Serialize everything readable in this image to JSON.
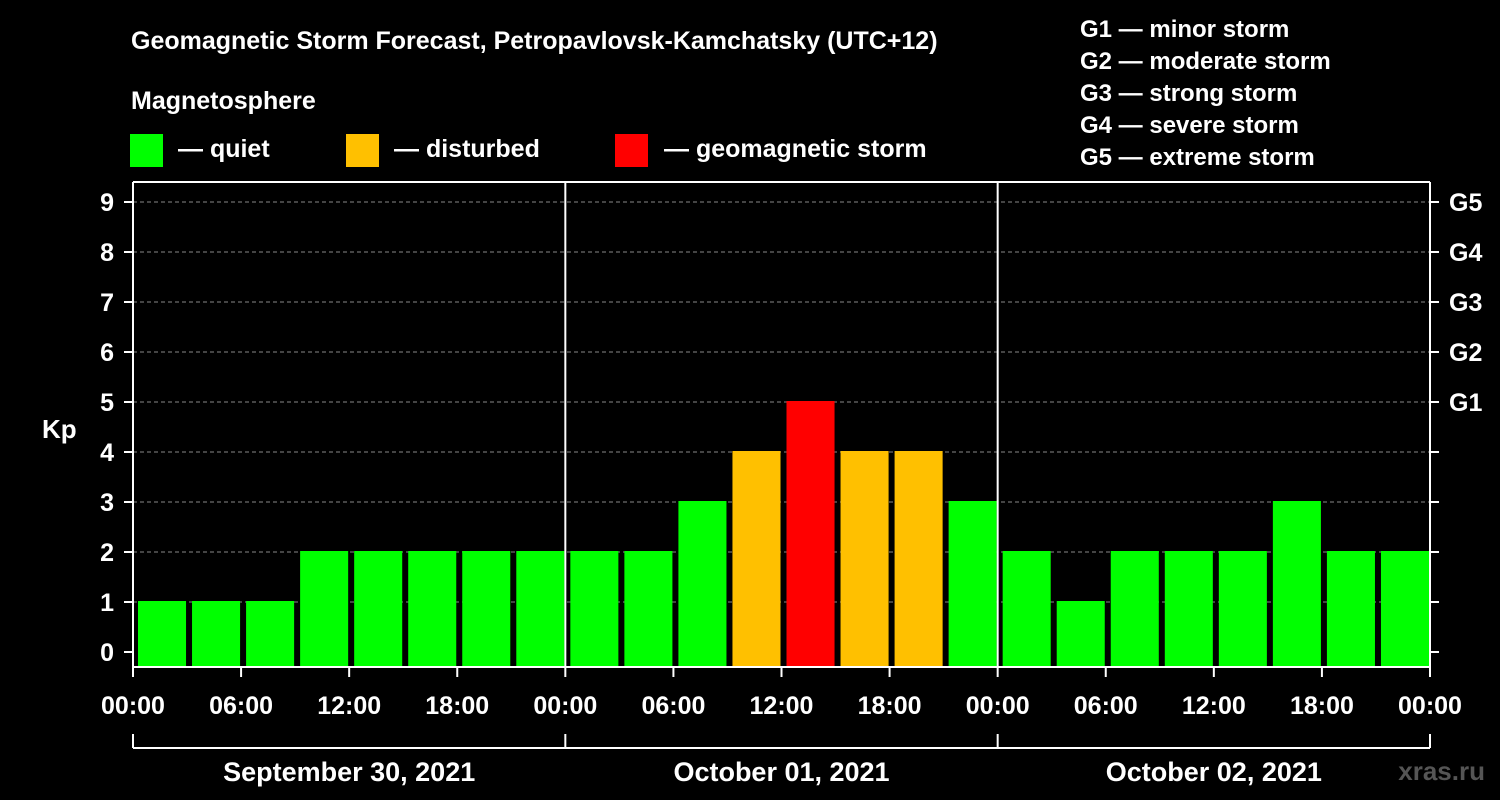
{
  "chart_data": {
    "type": "bar",
    "title": "Geomagnetic Storm Forecast, Petropavlovsk-Kamchatsky (UTC+12)",
    "ylabel": "Kp",
    "ylim": [
      0,
      9
    ],
    "yticks": [
      "0",
      "1",
      "2",
      "3",
      "4",
      "5",
      "6",
      "7",
      "8",
      "9"
    ],
    "right_ticks": [
      {
        "kp": 5,
        "label": "G1"
      },
      {
        "kp": 6,
        "label": "G2"
      },
      {
        "kp": 7,
        "label": "G3"
      },
      {
        "kp": 8,
        "label": "G4"
      },
      {
        "kp": 9,
        "label": "G5"
      }
    ],
    "legend_title": "Magnetosphere",
    "legend": [
      {
        "key": "quiet",
        "label": "— quiet",
        "color": "#00ff00"
      },
      {
        "key": "disturbed",
        "label": "— disturbed",
        "color": "#ffc000"
      },
      {
        "key": "storm",
        "label": "— geomagnetic storm",
        "color": "#ff0000"
      }
    ],
    "storm_scale": [
      "G1 — minor storm",
      "G2 — moderate storm",
      "G3 — strong storm",
      "G4 — severe storm",
      "G5 — extreme storm"
    ],
    "xtick_labels": [
      "00:00",
      "06:00",
      "12:00",
      "18:00",
      "00:00",
      "06:00",
      "12:00",
      "18:00",
      "00:00",
      "06:00",
      "12:00",
      "18:00",
      "00:00"
    ],
    "days": [
      "September 30, 2021",
      "October 01, 2021",
      "October 02, 2021"
    ],
    "values": [
      1,
      1,
      1,
      2,
      2,
      2,
      2,
      2,
      2,
      2,
      3,
      4,
      5,
      4,
      4,
      3,
      2,
      1,
      2,
      2,
      2,
      3,
      2,
      2
    ],
    "status": [
      "quiet",
      "quiet",
      "quiet",
      "quiet",
      "quiet",
      "quiet",
      "quiet",
      "quiet",
      "quiet",
      "quiet",
      "quiet",
      "disturbed",
      "storm",
      "disturbed",
      "disturbed",
      "quiet",
      "quiet",
      "quiet",
      "quiet",
      "quiet",
      "quiet",
      "quiet",
      "quiet",
      "quiet"
    ],
    "grid": true
  },
  "watermark": "xras.ru"
}
